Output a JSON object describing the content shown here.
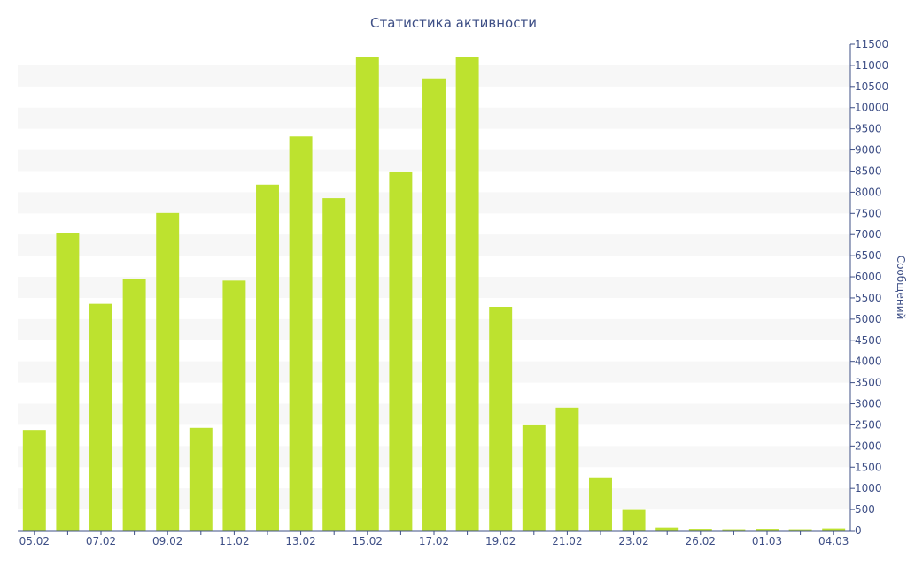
{
  "chart_data": {
    "type": "bar",
    "title": "Статистика активности",
    "ylabel": "Сообщений",
    "xlabel": "",
    "ylim": [
      0,
      11500
    ],
    "ytick_step": 500,
    "y_axis_position": "right",
    "grid": "alternating horizontal bands",
    "x_tick_labels": [
      "05.02",
      "07.02",
      "09.02",
      "11.02",
      "13.02",
      "15.02",
      "17.02",
      "19.02",
      "21.02",
      "23.02",
      "26.02",
      "01.03",
      "04.03"
    ],
    "categories": [
      "05.02",
      "06.02",
      "07.02",
      "08.02",
      "09.02",
      "10.02",
      "11.02",
      "12.02",
      "13.02",
      "14.02",
      "15.02",
      "16.02",
      "17.02",
      "18.02",
      "19.02",
      "20.02",
      "21.02",
      "22.02",
      "23.02",
      "24.02",
      "26.02",
      "28.02",
      "01.03",
      "02.03",
      "04.03"
    ],
    "values": [
      2380,
      7030,
      5360,
      5940,
      7510,
      2430,
      5910,
      8180,
      9320,
      7860,
      11190,
      8490,
      10690,
      11190,
      5290,
      2490,
      2910,
      1260,
      490,
      70,
      40,
      30,
      40,
      30,
      50
    ],
    "bar_color": "#bde22f"
  }
}
